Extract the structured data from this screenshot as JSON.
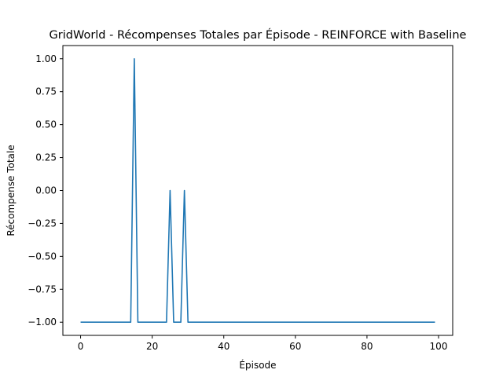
{
  "chart_data": {
    "type": "line",
    "title": "GridWorld - Récompenses Totales par Épisode - REINFORCE with Baseline",
    "xlabel": "Épisode",
    "ylabel": "Récompense Totale",
    "xlim": [
      -4.95,
      103.95
    ],
    "ylim": [
      -1.1,
      1.1
    ],
    "x_ticks": [
      0,
      20,
      40,
      60,
      80,
      100
    ],
    "x_tick_labels": [
      "0",
      "20",
      "40",
      "60",
      "80",
      "100"
    ],
    "y_ticks": [
      -1.0,
      -0.75,
      -0.5,
      -0.25,
      0.0,
      0.25,
      0.5,
      0.75,
      1.0
    ],
    "y_tick_labels": [
      "−1.00",
      "−0.75",
      "−0.50",
      "−0.25",
      "0.00",
      "0.25",
      "0.50",
      "0.75",
      "1.00"
    ],
    "grid": false,
    "legend": "none",
    "colors": {
      "series": "#1f77b4"
    },
    "series": [
      {
        "x": [
          0,
          1,
          2,
          3,
          4,
          5,
          6,
          7,
          8,
          9,
          10,
          11,
          12,
          13,
          14,
          15,
          16,
          17,
          18,
          19,
          20,
          21,
          22,
          23,
          24,
          25,
          26,
          27,
          28,
          29,
          30,
          31,
          32,
          33,
          34,
          35,
          36,
          37,
          38,
          39,
          40,
          41,
          42,
          43,
          44,
          45,
          46,
          47,
          48,
          49,
          50,
          51,
          52,
          53,
          54,
          55,
          56,
          57,
          58,
          59,
          60,
          61,
          62,
          63,
          64,
          65,
          66,
          67,
          68,
          69,
          70,
          71,
          72,
          73,
          74,
          75,
          76,
          77,
          78,
          79,
          80,
          81,
          82,
          83,
          84,
          85,
          86,
          87,
          88,
          89,
          90,
          91,
          92,
          93,
          94,
          95,
          96,
          97,
          98,
          99
        ],
        "values": [
          -1,
          -1,
          -1,
          -1,
          -1,
          -1,
          -1,
          -1,
          -1,
          -1,
          -1,
          -1,
          -1,
          -1,
          -1,
          1,
          -1,
          -1,
          -1,
          -1,
          -1,
          -1,
          -1,
          -1,
          -1,
          0,
          -1,
          -1,
          -1,
          0,
          -1,
          -1,
          -1,
          -1,
          -1,
          -1,
          -1,
          -1,
          -1,
          -1,
          -1,
          -1,
          -1,
          -1,
          -1,
          -1,
          -1,
          -1,
          -1,
          -1,
          -1,
          -1,
          -1,
          -1,
          -1,
          -1,
          -1,
          -1,
          -1,
          -1,
          -1,
          -1,
          -1,
          -1,
          -1,
          -1,
          -1,
          -1,
          -1,
          -1,
          -1,
          -1,
          -1,
          -1,
          -1,
          -1,
          -1,
          -1,
          -1,
          -1,
          -1,
          -1,
          -1,
          -1,
          -1,
          -1,
          -1,
          -1,
          -1,
          -1,
          -1,
          -1,
          -1,
          -1,
          -1,
          -1,
          -1,
          -1,
          -1,
          -1
        ]
      }
    ]
  }
}
